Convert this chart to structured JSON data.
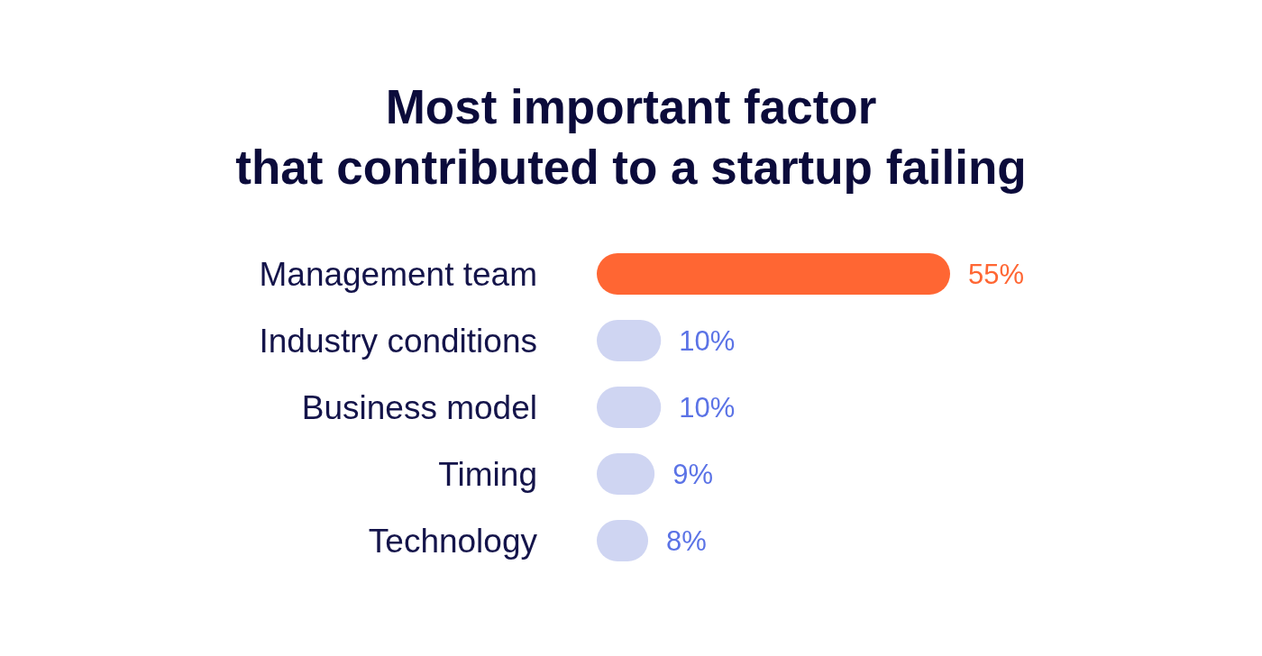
{
  "chart_data": {
    "type": "bar",
    "orientation": "horizontal",
    "title": "Most important factor\nthat contributed to a startup failing",
    "categories": [
      "Management team",
      "Industry conditions",
      "Business model",
      "Timing",
      "Technology"
    ],
    "values": [
      55,
      10,
      10,
      9,
      8
    ],
    "colors": [
      "#ff6633",
      "#cfd5f2",
      "#cfd5f2",
      "#cfd5f2",
      "#cfd5f2"
    ],
    "value_labels": [
      "55%",
      "10%",
      "10%",
      "9%",
      "8%"
    ],
    "data_labels": false
  }
}
